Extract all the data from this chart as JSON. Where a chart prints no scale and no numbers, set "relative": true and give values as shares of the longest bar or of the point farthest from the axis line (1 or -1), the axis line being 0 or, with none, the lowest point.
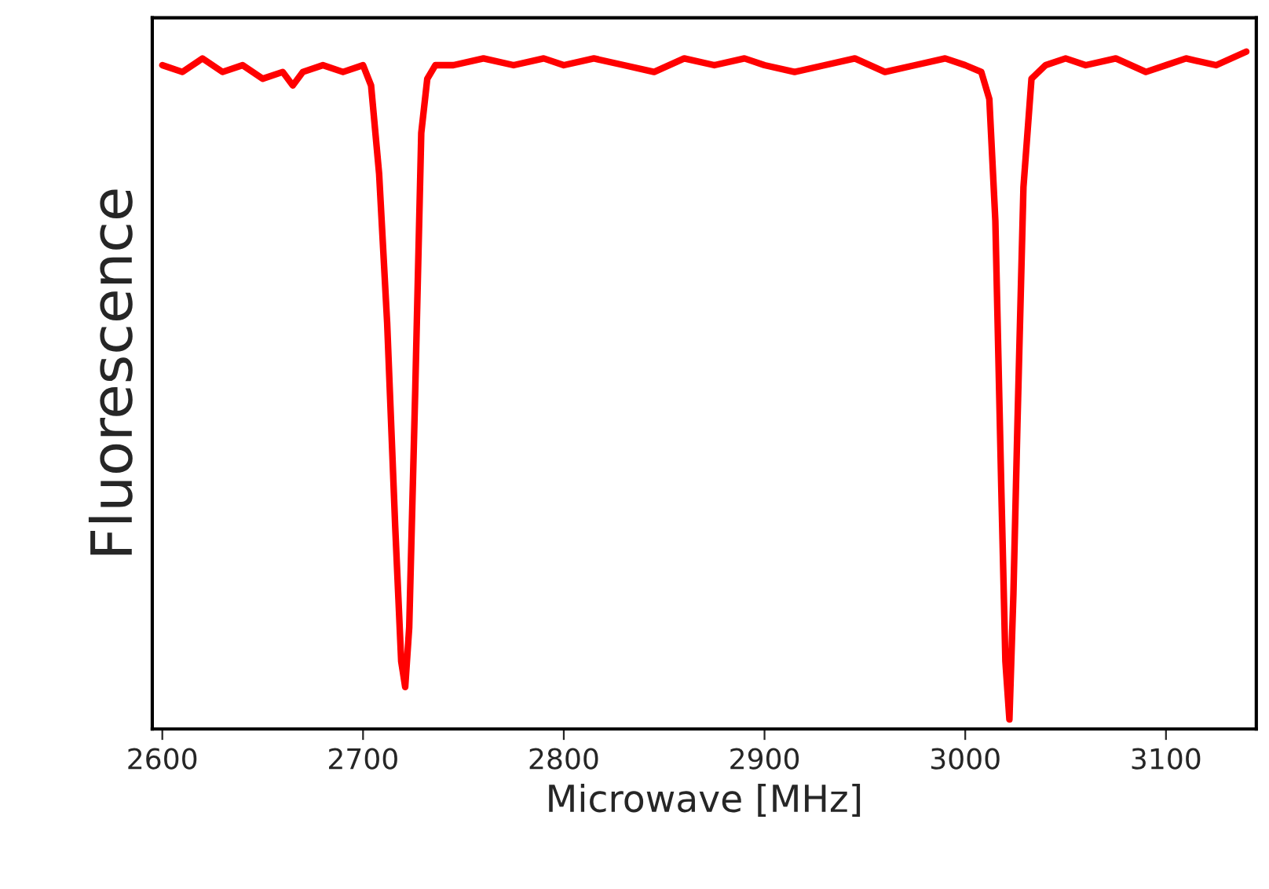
{
  "chart_data": {
    "type": "line",
    "xlabel": "Microwave [MHz]",
    "ylabel": "Fluorescence",
    "relative": true,
    "xlim": [
      2595,
      3145
    ],
    "xticks": [
      2600,
      2700,
      2800,
      2900,
      3000,
      3100
    ],
    "tick_labels": "x",
    "grid": false,
    "legend": false,
    "marker": "none",
    "line_style": "solid",
    "series": [
      {
        "color": "#ff0000",
        "x": [
          2600,
          2610,
          2620,
          2630,
          2640,
          2650,
          2660,
          2665,
          2670,
          2680,
          2690,
          2700,
          2704,
          2708,
          2712,
          2716,
          2719,
          2721,
          2723,
          2726,
          2729,
          2732,
          2736,
          2745,
          2760,
          2775,
          2790,
          2800,
          2815,
          2830,
          2845,
          2860,
          2875,
          2890,
          2900,
          2915,
          2930,
          2945,
          2960,
          2975,
          2990,
          3000,
          3008,
          3012,
          3015,
          3018,
          3020,
          3022,
          3024,
          3026,
          3029,
          3033,
          3040,
          3050,
          3060,
          3075,
          3090,
          3100,
          3110,
          3125,
          3140
        ],
        "values": [
          0.98,
          0.97,
          0.99,
          0.97,
          0.98,
          0.96,
          0.97,
          0.95,
          0.97,
          0.98,
          0.97,
          0.98,
          0.95,
          0.82,
          0.6,
          0.3,
          0.1,
          0.062,
          0.15,
          0.5,
          0.88,
          0.96,
          0.98,
          0.98,
          0.99,
          0.98,
          0.99,
          0.98,
          0.99,
          0.98,
          0.97,
          0.99,
          0.98,
          0.99,
          0.98,
          0.97,
          0.98,
          0.99,
          0.97,
          0.98,
          0.99,
          0.98,
          0.97,
          0.93,
          0.75,
          0.35,
          0.1,
          0.014,
          0.2,
          0.45,
          0.8,
          0.96,
          0.98,
          0.99,
          0.98,
          0.99,
          0.97,
          0.98,
          0.99,
          0.98,
          1
        ]
      }
    ]
  }
}
